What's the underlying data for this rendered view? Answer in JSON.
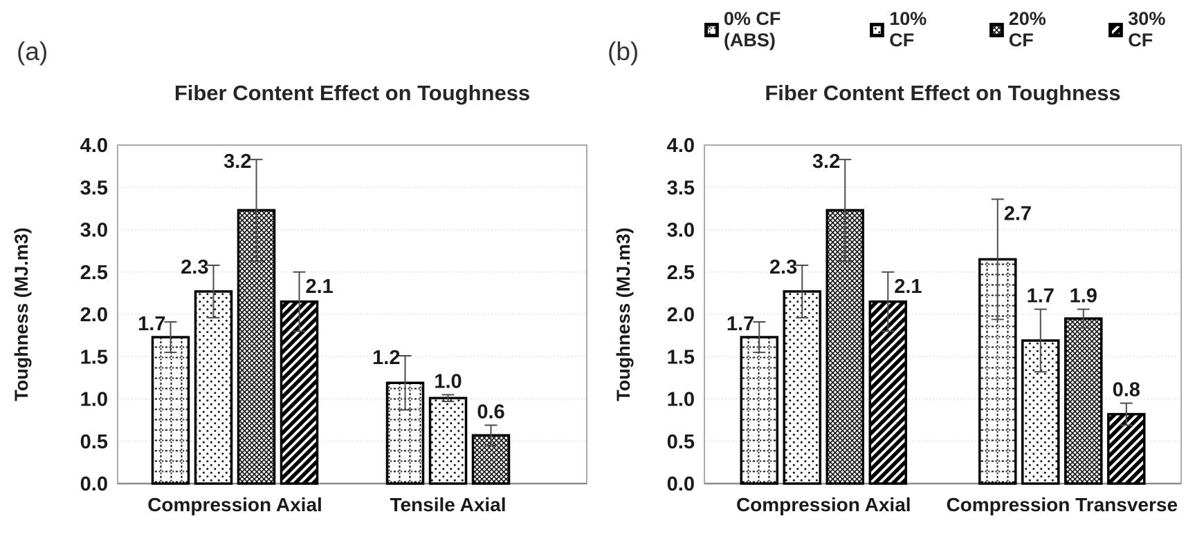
{
  "figure": {
    "background": "#ffffff",
    "panel_a_label": "(a)",
    "panel_b_label": "(b)"
  },
  "colors": {
    "text": "#1a1a1a",
    "title_text": "#262626",
    "gridline": "#dcdce0",
    "plot_frame": "#a3a3a3",
    "axis_line": "#8c8c8c",
    "bar_outline": "#000000",
    "error_bar": "#4d4d4d",
    "pattern_ink": "#111111"
  },
  "legend": {
    "position": "top-right",
    "items": [
      {
        "label": "0% CF (ABS)",
        "pattern": "grid-dotted"
      },
      {
        "label": "10% CF",
        "pattern": "dots"
      },
      {
        "label": "20% CF",
        "pattern": "crosshatch"
      },
      {
        "label": "30% CF",
        "pattern": "diagonal-stripes"
      }
    ]
  },
  "chart_data": [
    {
      "id": "a",
      "panel_label": "(a)",
      "type": "bar",
      "title": "Fiber Content Effect on Toughness",
      "xlabel": "",
      "ylabel": "Toughness (MJ.m3)",
      "ylim": [
        0.0,
        4.0
      ],
      "ytick_step": 0.5,
      "yticks": [
        "0.0",
        "0.5",
        "1.0",
        "1.5",
        "2.0",
        "2.5",
        "3.0",
        "3.5",
        "4.0"
      ],
      "grid": true,
      "error_bars": true,
      "categories": [
        "Compression Axial",
        "Tensile Axial"
      ],
      "series": [
        {
          "name": "0% CF (ABS)",
          "pattern": "grid-dotted",
          "values": [
            1.73,
            1.19
          ],
          "errors": [
            0.18,
            0.32
          ],
          "labels": [
            "1.7",
            "1.2"
          ],
          "label_side": [
            "left",
            "left"
          ]
        },
        {
          "name": "10% CF",
          "pattern": "dots",
          "values": [
            2.27,
            1.01
          ],
          "errors": [
            0.31,
            0.04
          ],
          "labels": [
            "2.3",
            "1.0"
          ],
          "label_side": [
            "left",
            "top"
          ]
        },
        {
          "name": "20% CF",
          "pattern": "crosshatch",
          "values": [
            3.23,
            0.57
          ],
          "errors": [
            0.6,
            0.12
          ],
          "labels": [
            "3.2",
            "0.6"
          ],
          "label_side": [
            "left",
            "top"
          ]
        },
        {
          "name": "30% CF",
          "pattern": "diagonal-stripes",
          "values": [
            2.15,
            null
          ],
          "errors": [
            0.35,
            null
          ],
          "labels": [
            "2.1",
            null
          ],
          "label_side": [
            "right",
            null
          ]
        }
      ]
    },
    {
      "id": "b",
      "panel_label": "(b)",
      "type": "bar",
      "title": "Fiber Content Effect on Toughness",
      "xlabel": "",
      "ylabel": "Toughness (MJ.m3)",
      "ylim": [
        0.0,
        4.0
      ],
      "ytick_step": 0.5,
      "yticks": [
        "0.0",
        "0.5",
        "1.0",
        "1.5",
        "2.0",
        "2.5",
        "3.0",
        "3.5",
        "4.0"
      ],
      "grid": true,
      "error_bars": true,
      "categories": [
        "Compression Axial",
        "Compression Transverse"
      ],
      "series": [
        {
          "name": "0% CF (ABS)",
          "pattern": "grid-dotted",
          "values": [
            1.73,
            2.65
          ],
          "errors": [
            0.18,
            0.71
          ],
          "labels": [
            "1.7",
            "2.7"
          ],
          "label_side": [
            "left",
            "right"
          ]
        },
        {
          "name": "10% CF",
          "pattern": "dots",
          "values": [
            2.27,
            1.69
          ],
          "errors": [
            0.31,
            0.37
          ],
          "labels": [
            "2.3",
            "1.7"
          ],
          "label_side": [
            "left",
            "top"
          ]
        },
        {
          "name": "20% CF",
          "pattern": "crosshatch",
          "values": [
            3.23,
            1.95
          ],
          "errors": [
            0.6,
            0.11
          ],
          "labels": [
            "3.2",
            "1.9"
          ],
          "label_side": [
            "left",
            "top"
          ]
        },
        {
          "name": "30% CF",
          "pattern": "diagonal-stripes",
          "values": [
            2.15,
            0.82
          ],
          "errors": [
            0.35,
            0.13
          ],
          "labels": [
            "2.1",
            "0.8"
          ],
          "label_side": [
            "right",
            "top"
          ]
        }
      ]
    }
  ]
}
